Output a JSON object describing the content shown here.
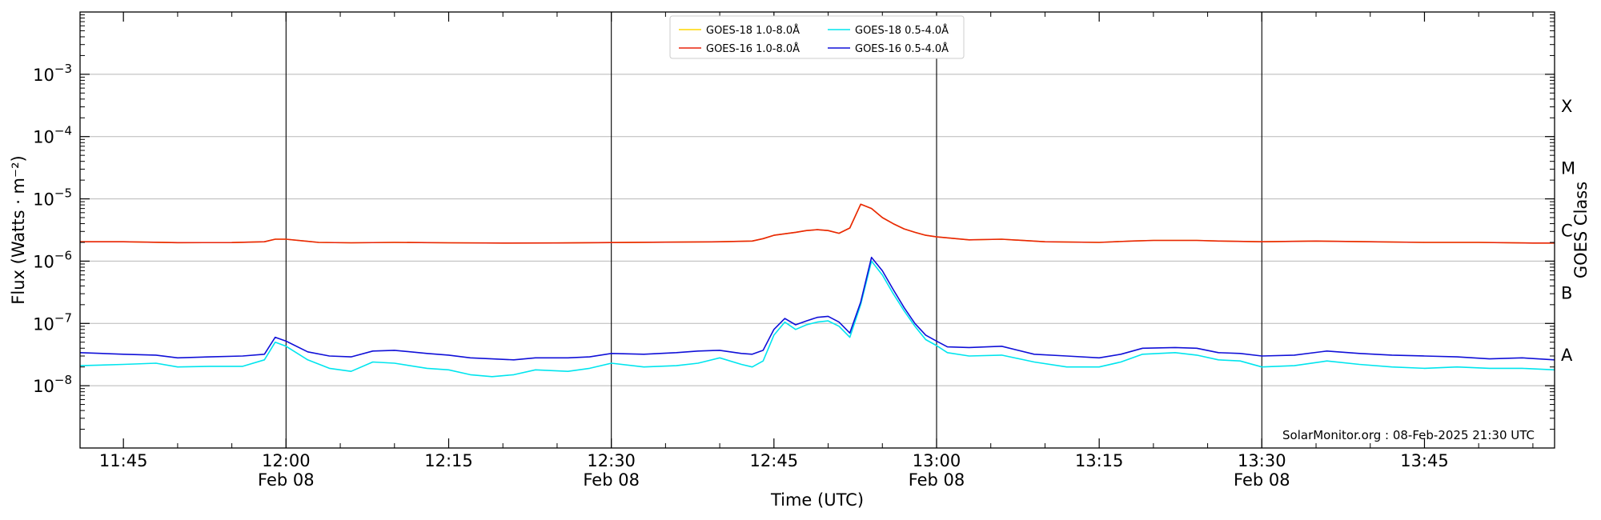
{
  "chart_data": {
    "type": "line",
    "xlabel": "Time (UTC)",
    "ylabel": "Flux (Watts · m⁻²)",
    "y2label": "GOES Class",
    "yscale": "log",
    "ylim": [
      1e-09,
      0.01
    ],
    "xlim": [
      "11:41",
      "13:57"
    ],
    "grid": "horizontal",
    "legend_position": "top-center",
    "yticks": [
      {
        "value": 1e-08,
        "base": "10",
        "exp": "−8"
      },
      {
        "value": 1e-07,
        "base": "10",
        "exp": "−7"
      },
      {
        "value": 1e-06,
        "base": "10",
        "exp": "−6"
      },
      {
        "value": 1e-05,
        "base": "10",
        "exp": "−5"
      },
      {
        "value": 0.0001,
        "base": "10",
        "exp": "−4"
      },
      {
        "value": 0.001,
        "base": "10",
        "exp": "−3"
      }
    ],
    "xticks": [
      {
        "time": "11:45",
        "label": "11:45",
        "date": ""
      },
      {
        "time": "12:00",
        "label": "12:00",
        "date": "Feb 08"
      },
      {
        "time": "12:15",
        "label": "12:15",
        "date": ""
      },
      {
        "time": "12:30",
        "label": "12:30",
        "date": "Feb 08"
      },
      {
        "time": "12:45",
        "label": "12:45",
        "date": ""
      },
      {
        "time": "13:00",
        "label": "13:00",
        "date": "Feb 08"
      },
      {
        "time": "13:15",
        "label": "13:15",
        "date": ""
      },
      {
        "time": "13:30",
        "label": "13:30",
        "date": "Feb 08"
      },
      {
        "time": "13:45",
        "label": "13:45",
        "date": ""
      }
    ],
    "vlines": [
      "12:00",
      "12:30",
      "13:00",
      "13:30"
    ],
    "goes_classes": [
      {
        "label": "A",
        "value": 3.16e-08
      },
      {
        "label": "B",
        "value": 3.16e-07
      },
      {
        "label": "C",
        "value": 3.16e-06
      },
      {
        "label": "M",
        "value": 3.16e-05
      },
      {
        "label": "X",
        "value": 0.000316
      }
    ],
    "legend": [
      {
        "name": "GOES-18 1.0-8.0Å",
        "color": "#ffd700"
      },
      {
        "name": "GOES-18 0.5-4.0Å",
        "color": "#00e5ee"
      },
      {
        "name": "GOES-16 1.0-8.0Å",
        "color": "#e8240c"
      },
      {
        "name": "GOES-16 0.5-4.0Å",
        "color": "#1010d8"
      }
    ],
    "series": [
      {
        "name": "GOES-18 1.0-8.0Å",
        "color": "#ffd700",
        "x": [
          "11:41",
          "11:45",
          "11:50",
          "11:55",
          "11:58",
          "11:59",
          "12:00",
          "12:03",
          "12:06",
          "12:10",
          "12:15",
          "12:20",
          "12:25",
          "12:30",
          "12:35",
          "12:40",
          "12:43",
          "12:44",
          "12:45",
          "12:47",
          "12:48",
          "12:49",
          "12:50",
          "12:51",
          "12:52",
          "12:53",
          "12:54",
          "12:55",
          "12:56",
          "12:57",
          "12:58",
          "12:59",
          "13:00",
          "13:03",
          "13:06",
          "13:10",
          "13:15",
          "13:18",
          "13:20",
          "13:24",
          "13:26",
          "13:30",
          "13:35",
          "13:40",
          "13:45",
          "13:50",
          "13:55",
          "13:57"
        ],
        "y": [
          2.05e-06,
          2.05e-06,
          1.98e-06,
          1.99e-06,
          2.05e-06,
          2.25e-06,
          2.25e-06,
          2e-06,
          1.97e-06,
          2e-06,
          1.97e-06,
          1.95e-06,
          1.96e-06,
          1.99e-06,
          2.02e-06,
          2.05e-06,
          2.1e-06,
          2.3e-06,
          2.6e-06,
          2.9e-06,
          3.1e-06,
          3.2e-06,
          3.1e-06,
          2.8e-06,
          3.4e-06,
          8.2e-06,
          7e-06,
          5e-06,
          4e-06,
          3.3e-06,
          2.9e-06,
          2.6e-06,
          2.45e-06,
          2.2e-06,
          2.25e-06,
          2.05e-06,
          2e-06,
          2.1e-06,
          2.15e-06,
          2.15e-06,
          2.1e-06,
          2.05e-06,
          2.1e-06,
          2.05e-06,
          2e-06,
          2e-06,
          1.95e-06,
          1.95e-06
        ]
      },
      {
        "name": "GOES-16 1.0-8.0Å",
        "color": "#e8240c",
        "x": [
          "11:41",
          "11:45",
          "11:50",
          "11:55",
          "11:58",
          "11:59",
          "12:00",
          "12:03",
          "12:06",
          "12:10",
          "12:15",
          "12:20",
          "12:25",
          "12:30",
          "12:35",
          "12:40",
          "12:43",
          "12:44",
          "12:45",
          "12:47",
          "12:48",
          "12:49",
          "12:50",
          "12:51",
          "12:52",
          "12:53",
          "12:54",
          "12:55",
          "12:56",
          "12:57",
          "12:58",
          "12:59",
          "13:00",
          "13:03",
          "13:06",
          "13:10",
          "13:15",
          "13:18",
          "13:20",
          "13:24",
          "13:26",
          "13:30",
          "13:35",
          "13:40",
          "13:45",
          "13:50",
          "13:55",
          "13:57"
        ],
        "y": [
          2.05e-06,
          2.05e-06,
          1.98e-06,
          1.99e-06,
          2.05e-06,
          2.25e-06,
          2.25e-06,
          2e-06,
          1.97e-06,
          2e-06,
          1.97e-06,
          1.95e-06,
          1.96e-06,
          1.99e-06,
          2.02e-06,
          2.05e-06,
          2.1e-06,
          2.3e-06,
          2.6e-06,
          2.9e-06,
          3.1e-06,
          3.2e-06,
          3.1e-06,
          2.8e-06,
          3.4e-06,
          8.2e-06,
          7e-06,
          5e-06,
          4e-06,
          3.3e-06,
          2.9e-06,
          2.6e-06,
          2.45e-06,
          2.2e-06,
          2.25e-06,
          2.05e-06,
          2e-06,
          2.1e-06,
          2.15e-06,
          2.15e-06,
          2.1e-06,
          2.05e-06,
          2.1e-06,
          2.05e-06,
          2e-06,
          2e-06,
          1.95e-06,
          1.95e-06
        ]
      },
      {
        "name": "GOES-18 0.5-4.0Å",
        "color": "#00e5ee",
        "x": [
          "11:41",
          "11:45",
          "11:48",
          "11:50",
          "11:53",
          "11:56",
          "11:58",
          "11:59",
          "12:00",
          "12:02",
          "12:04",
          "12:06",
          "12:08",
          "12:10",
          "12:13",
          "12:15",
          "12:17",
          "12:19",
          "12:21",
          "12:23",
          "12:26",
          "12:28",
          "12:30",
          "12:33",
          "12:36",
          "12:38",
          "12:40",
          "12:42",
          "12:43",
          "12:44",
          "12:45",
          "12:46",
          "12:47",
          "12:48",
          "12:49",
          "12:50",
          "12:51",
          "12:52",
          "12:53",
          "12:54",
          "12:55",
          "12:56",
          "12:57",
          "12:58",
          "12:59",
          "13:00",
          "13:01",
          "13:03",
          "13:06",
          "13:09",
          "13:12",
          "13:15",
          "13:17",
          "13:19",
          "13:22",
          "13:24",
          "13:26",
          "13:28",
          "13:30",
          "13:33",
          "13:36",
          "13:39",
          "13:42",
          "13:45",
          "13:48",
          "13:51",
          "13:54",
          "13:57"
        ],
        "y": [
          2.1e-08,
          2.2e-08,
          2.3e-08,
          2e-08,
          2.05e-08,
          2.05e-08,
          2.6e-08,
          5e-08,
          4.3e-08,
          2.6e-08,
          1.9e-08,
          1.7e-08,
          2.4e-08,
          2.3e-08,
          1.9e-08,
          1.8e-08,
          1.5e-08,
          1.4e-08,
          1.5e-08,
          1.8e-08,
          1.7e-08,
          1.9e-08,
          2.3e-08,
          2e-08,
          2.1e-08,
          2.3e-08,
          2.8e-08,
          2.2e-08,
          2e-08,
          2.5e-08,
          6.5e-08,
          1.05e-07,
          8e-08,
          9.5e-08,
          1.05e-07,
          1.1e-07,
          9e-08,
          6e-08,
          2e-07,
          1e-06,
          6e-07,
          3e-07,
          1.6e-07,
          9e-08,
          5.5e-08,
          4.4e-08,
          3.4e-08,
          3e-08,
          3.1e-08,
          2.4e-08,
          2e-08,
          2e-08,
          2.4e-08,
          3.2e-08,
          3.4e-08,
          3.1e-08,
          2.6e-08,
          2.5e-08,
          2e-08,
          2.1e-08,
          2.5e-08,
          2.2e-08,
          2e-08,
          1.9e-08,
          2e-08,
          1.9e-08,
          1.9e-08,
          1.8e-08
        ]
      },
      {
        "name": "GOES-16 0.5-4.0Å",
        "color": "#1010d8",
        "x": [
          "11:41",
          "11:45",
          "11:48",
          "11:50",
          "11:53",
          "11:56",
          "11:58",
          "11:59",
          "12:00",
          "12:02",
          "12:04",
          "12:06",
          "12:08",
          "12:10",
          "12:13",
          "12:15",
          "12:17",
          "12:19",
          "12:21",
          "12:23",
          "12:26",
          "12:28",
          "12:30",
          "12:33",
          "12:36",
          "12:38",
          "12:40",
          "12:42",
          "12:43",
          "12:44",
          "12:45",
          "12:46",
          "12:47",
          "12:48",
          "12:49",
          "12:50",
          "12:51",
          "12:52",
          "12:53",
          "12:54",
          "12:55",
          "12:56",
          "12:57",
          "12:58",
          "12:59",
          "13:00",
          "13:01",
          "13:03",
          "13:06",
          "13:09",
          "13:12",
          "13:15",
          "13:17",
          "13:19",
          "13:22",
          "13:24",
          "13:26",
          "13:28",
          "13:30",
          "13:33",
          "13:36",
          "13:39",
          "13:42",
          "13:45",
          "13:48",
          "13:51",
          "13:54",
          "13:57"
        ],
        "y": [
          3.4e-08,
          3.2e-08,
          3.1e-08,
          2.8e-08,
          2.9e-08,
          3e-08,
          3.2e-08,
          6e-08,
          5.2e-08,
          3.5e-08,
          3e-08,
          2.9e-08,
          3.6e-08,
          3.7e-08,
          3.3e-08,
          3.1e-08,
          2.8e-08,
          2.7e-08,
          2.6e-08,
          2.8e-08,
          2.8e-08,
          2.9e-08,
          3.3e-08,
          3.2e-08,
          3.4e-08,
          3.6e-08,
          3.7e-08,
          3.3e-08,
          3.2e-08,
          3.7e-08,
          8e-08,
          1.2e-07,
          9.5e-08,
          1.1e-07,
          1.25e-07,
          1.3e-07,
          1.05e-07,
          7e-08,
          2.2e-07,
          1.15e-06,
          7e-07,
          3.5e-07,
          1.8e-07,
          1e-07,
          6.5e-08,
          5.2e-08,
          4.2e-08,
          4.1e-08,
          4.3e-08,
          3.2e-08,
          3e-08,
          2.8e-08,
          3.2e-08,
          4e-08,
          4.1e-08,
          4e-08,
          3.4e-08,
          3.3e-08,
          3e-08,
          3.1e-08,
          3.6e-08,
          3.3e-08,
          3.1e-08,
          3e-08,
          2.9e-08,
          2.7e-08,
          2.8e-08,
          2.6e-08
        ]
      }
    ]
  },
  "watermark": "SolarMonitor.org : 08-Feb-2025 21:30 UTC"
}
